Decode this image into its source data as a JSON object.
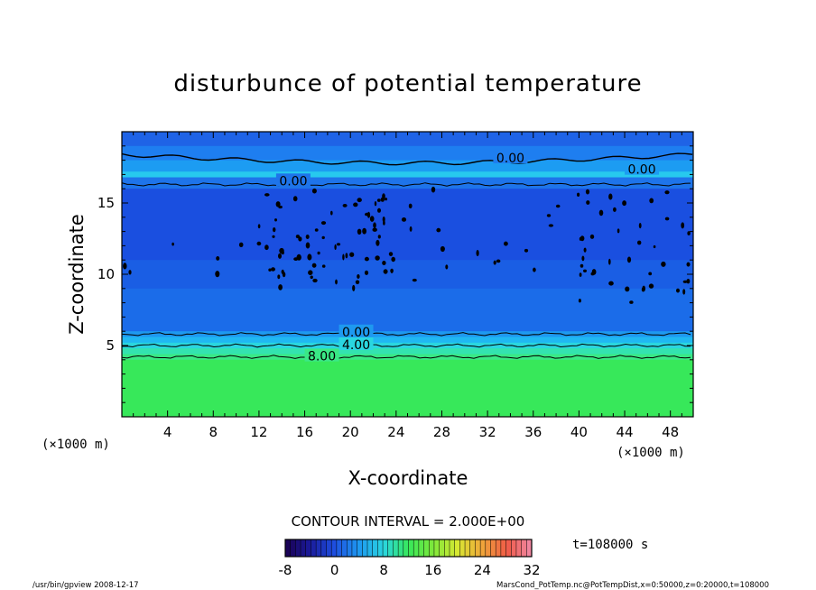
{
  "chart_data": {
    "type": "heatmap",
    "title": "disturbunce of potential temperature",
    "xlabel": "X-coordinate",
    "ylabel": "Z-coordinate",
    "x_unit": "(×1000 m)",
    "y_unit": "(×1000 m)",
    "xlim": [
      0,
      50
    ],
    "ylim": [
      0,
      20
    ],
    "xticks": [
      "4",
      "8",
      "12",
      "16",
      "20",
      "24",
      "28",
      "32",
      "36",
      "40",
      "44",
      "48"
    ],
    "yticks": [
      "5",
      "10",
      "15"
    ],
    "bands": [
      {
        "z_from": 19.0,
        "z_to": 20.0,
        "value": -4,
        "color": "#1f63e6"
      },
      {
        "z_from": 18.0,
        "z_to": 19.0,
        "value": -2,
        "color": "#1e7ef0"
      },
      {
        "z_from": 17.2,
        "z_to": 18.0,
        "value": 0,
        "color": "#1c9cf2"
      },
      {
        "z_from": 16.8,
        "z_to": 17.2,
        "value": 2,
        "color": "#27c9ee"
      },
      {
        "z_from": 16.0,
        "z_to": 16.8,
        "value": -2,
        "color": "#1e74ea"
      },
      {
        "z_from": 11.0,
        "z_to": 16.0,
        "value": -5,
        "color": "#1a4fe0"
      },
      {
        "z_from": 9.0,
        "z_to": 11.0,
        "value": -4,
        "color": "#1a5ee4"
      },
      {
        "z_from": 6.0,
        "z_to": 9.0,
        "value": -3,
        "color": "#1b6ce9"
      },
      {
        "z_from": 5.6,
        "z_to": 6.0,
        "value": 0,
        "color": "#1e99f0"
      },
      {
        "z_from": 5.2,
        "z_to": 5.6,
        "value": 2,
        "color": "#20b8f2"
      },
      {
        "z_from": 4.8,
        "z_to": 5.2,
        "value": 4,
        "color": "#2ad6e0"
      },
      {
        "z_from": 4.4,
        "z_to": 4.8,
        "value": 6,
        "color": "#33e3b0"
      },
      {
        "z_from": 4.0,
        "z_to": 4.4,
        "value": 8,
        "color": "#3ae886"
      },
      {
        "z_from": 0.0,
        "z_to": 4.0,
        "value": 10,
        "color": "#37e85a"
      }
    ],
    "contour_labels": [
      {
        "text": "0.00",
        "x": 34.0,
        "z": 18.1
      },
      {
        "text": "0.00",
        "x": 45.5,
        "z": 17.3
      },
      {
        "text": "0.00",
        "x": 15.0,
        "z": 16.5
      },
      {
        "text": "0.00",
        "x": 20.5,
        "z": 5.9
      },
      {
        "text": "4.00",
        "x": 20.5,
        "z": 5.0
      },
      {
        "text": "8.00",
        "x": 17.5,
        "z": 4.2
      }
    ],
    "contour_levels": [
      16.3,
      5.8,
      5.0,
      4.2
    ],
    "contour_interval_label": "CONTOUR INTERVAL = 2.000E+00",
    "colorbar": {
      "min": -8,
      "max": 32,
      "ticks": [
        "-8",
        "0",
        "8",
        "16",
        "24",
        "32"
      ]
    },
    "time_label": "t=108000 s"
  },
  "footer": {
    "left": "/usr/bin/gpview   2008-12-17",
    "right": "MarsCond_PotTemp.nc@PotTempDist,x=0:50000,z=0:20000,t=108000"
  }
}
